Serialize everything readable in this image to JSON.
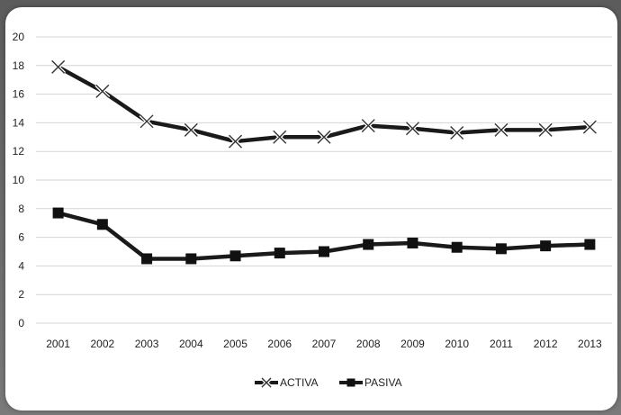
{
  "chart_data": {
    "type": "line",
    "x": [
      "2001",
      "2002",
      "2003",
      "2004",
      "2005",
      "2006",
      "2007",
      "2008",
      "2009",
      "2010",
      "2011",
      "2012",
      "2013"
    ],
    "series": [
      {
        "name": "ACTIVA",
        "marker": "x",
        "values": [
          17.9,
          16.2,
          14.1,
          13.5,
          12.7,
          13.0,
          13.0,
          13.8,
          13.6,
          13.3,
          13.5,
          13.5,
          13.7
        ]
      },
      {
        "name": "PASIVA",
        "marker": "square",
        "values": [
          7.7,
          6.9,
          4.5,
          4.5,
          4.7,
          4.9,
          5.0,
          5.5,
          5.6,
          5.3,
          5.2,
          5.4,
          5.5
        ]
      }
    ],
    "yticks": [
      "0",
      "2",
      "4",
      "6",
      "8",
      "10",
      "12",
      "14",
      "16",
      "18",
      "20"
    ],
    "ylim": [
      0,
      20
    ],
    "grid": true,
    "legend": "bottom-center",
    "colors": {
      "line": "#1a1a1a",
      "grid": "#d4d4d4"
    }
  }
}
